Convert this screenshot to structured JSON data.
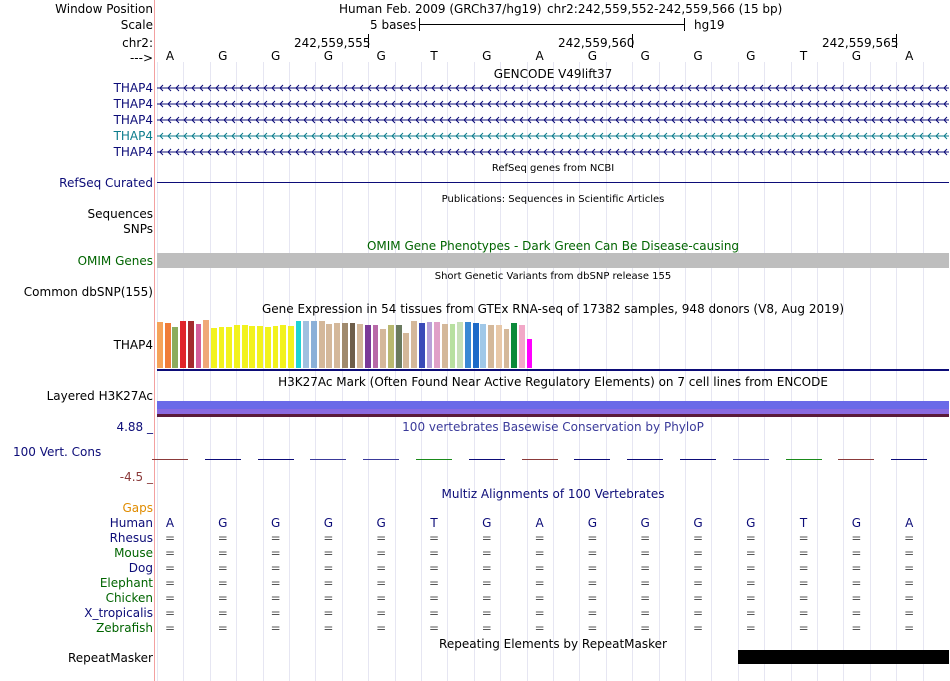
{
  "header": {
    "window_position_label": "Window Position",
    "assembly": "Human Feb. 2009 (GRCh37/hg19)",
    "position": "chr2:242,559,552-242,559,566 (15 bp)",
    "scale_label": "Scale",
    "scale_value": "5 bases",
    "scale_db": "hg19",
    "chrom_label": "chr2:",
    "coords": [
      "242,559,555",
      "242,559,560",
      "242,559,565"
    ],
    "strand_label": "--->"
  },
  "bases": [
    "A",
    "G",
    "G",
    "G",
    "G",
    "T",
    "G",
    "A",
    "G",
    "G",
    "G",
    "G",
    "T",
    "G",
    "A"
  ],
  "tracks": {
    "gencode": {
      "title": "GENCODE V49lift37",
      "genes": [
        "THAP4",
        "THAP4",
        "THAP4",
        "THAP4",
        "THAP4"
      ],
      "colors": [
        "#0c0c78",
        "#0c0c78",
        "#0c0c78",
        "#0c7c8c",
        "#0c0c78"
      ]
    },
    "refseq": {
      "title": "RefSeq genes from NCBI",
      "label": "RefSeq Curated"
    },
    "publications": {
      "title": "Publications: Sequences in Scientific Articles",
      "label": "Sequences"
    },
    "snps": {
      "label": "SNPs"
    },
    "omim": {
      "title": "OMIM Gene Phenotypes - Dark Green Can Be Disease-causing",
      "label": "OMIM Genes"
    },
    "dbsnp": {
      "title": "Short Genetic Variants from dbSNP release 155",
      "label": "Common dbSNP(155)"
    },
    "gtex": {
      "title": "Gene Expression in 54 tissues from GTEx RNA-seq of 17382 samples, 948 donors (V8, Aug 2019)",
      "label": "THAP4"
    },
    "h3k27ac": {
      "title": "H3K27Ac Mark (Often Found Near Active Regulatory Elements) on 7 cell lines from ENCODE",
      "label": "Layered H3K27Ac"
    },
    "phylop": {
      "title": "100 vertebrates Basewise Conservation by PhyloP",
      "label": "100 Vert. Cons",
      "max": "4.88 _",
      "min": "-4.5 _"
    },
    "multiz": {
      "title": "Multiz Alignments of 100 Vertebrates",
      "gaps_label": "Gaps",
      "species": [
        "Human",
        "Rhesus",
        "Mouse",
        "Dog",
        "Elephant",
        "Chicken",
        "X_tropicalis",
        "Zebrafish"
      ],
      "species_colors": [
        "#0c0c78",
        "#0c0c78",
        "#006400",
        "#0c0c78",
        "#006400",
        "#006400",
        "#0c0c78",
        "#006400"
      ],
      "eq": "="
    },
    "repeatmasker": {
      "title": "Repeating Elements by RepeatMasker",
      "label": "RepeatMasker"
    }
  },
  "colors": {
    "navy": "#0c0c78",
    "omim_green": "#006400",
    "gaps_orange": "#e08c00",
    "phylop_max": "#0c0c78",
    "phylop_min": "#8b3a3a"
  },
  "gtex_colors": [
    "#f5a35a",
    "#f07c38",
    "#8bac5e",
    "#e0242a",
    "#a42b2e",
    "#d45e9a",
    "#f0a878",
    "#f2f21e",
    "#f2f21e",
    "#f2f21e",
    "#f2f21e",
    "#f2f21e",
    "#f2f21e",
    "#f2f21e",
    "#f2f21e",
    "#f2f21e",
    "#f2f21e",
    "#f2f21e",
    "#1ed4d4",
    "#a0c0e0",
    "#8bb0d8",
    "#d4b89a",
    "#d4b89a",
    "#d4b89a",
    "#a08a6e",
    "#6e5e4a",
    "#d4b89a",
    "#7a3a98",
    "#b86aa8",
    "#d4b89a",
    "#b8b870",
    "#6a7a5e",
    "#d4b89a",
    "#d4b89a",
    "#3a4ab8",
    "#b8a0d8",
    "#e0a0c8",
    "#d4b89a",
    "#b8e0a0",
    "#c8e0b8",
    "#3a88d4",
    "#1e6ac8",
    "#a0c8e8",
    "#d4b89a",
    "#e8c8a8",
    "#d4b89a",
    "#0c8a3a",
    "#f2a8c8",
    "#ff00ff"
  ],
  "gtex_values": [
    0.92,
    0.9,
    0.82,
    0.93,
    0.93,
    0.88,
    0.95,
    0.8,
    0.82,
    0.82,
    0.86,
    0.86,
    0.84,
    0.83,
    0.82,
    0.83,
    0.86,
    0.84,
    0.93,
    0.94,
    0.93,
    0.93,
    0.88,
    0.9,
    0.9,
    0.9,
    0.88,
    0.86,
    0.86,
    0.78,
    0.86,
    0.86,
    0.7,
    0.94,
    0.9,
    0.92,
    0.92,
    0.88,
    0.88,
    0.92,
    0.92,
    0.9,
    0.88,
    0.86,
    0.86,
    0.78,
    0.9,
    0.86,
    0.58
  ]
}
